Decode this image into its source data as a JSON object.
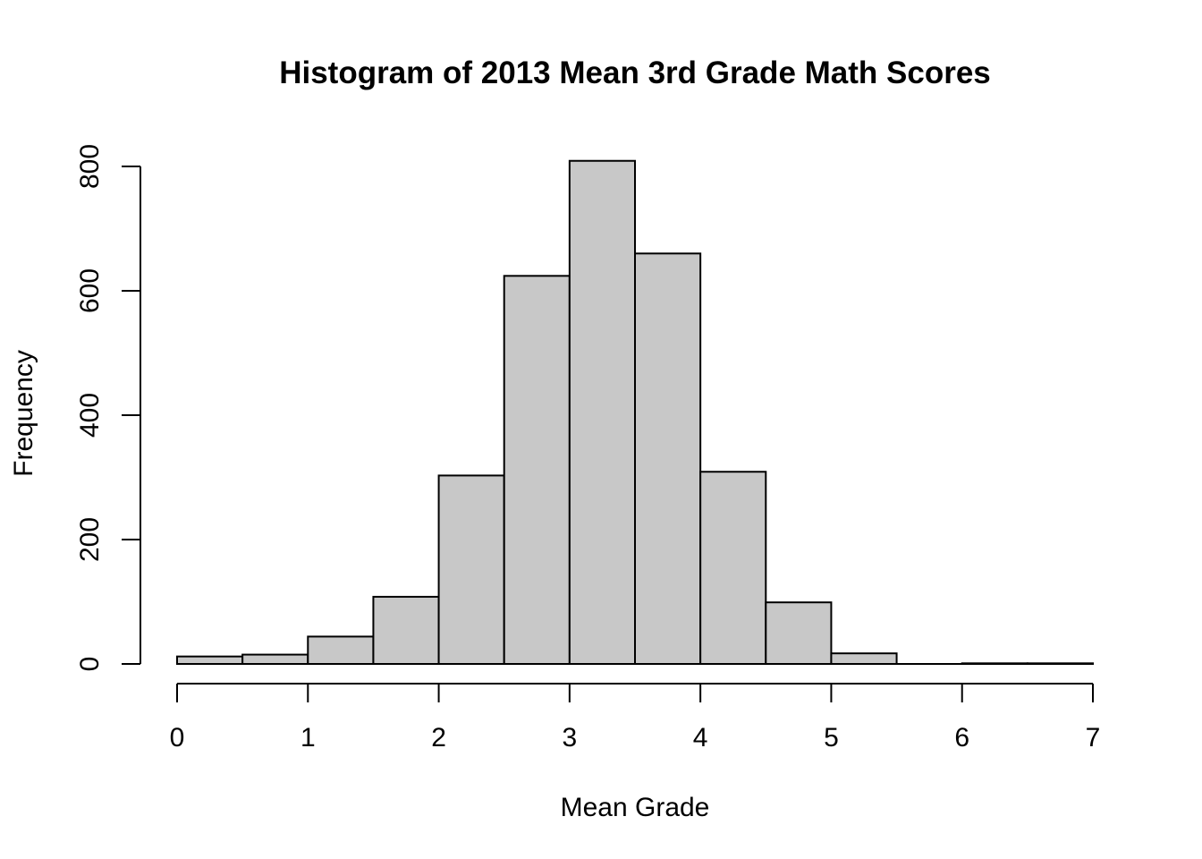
{
  "chart_data": {
    "type": "bar",
    "title": "Histogram of 2013 Mean 3rd Grade Math Scores",
    "xlabel": "Mean Grade",
    "ylabel": "Frequency",
    "bin_edges": [
      0,
      0.5,
      1,
      1.5,
      2,
      2.5,
      3,
      3.5,
      4,
      4.5,
      5,
      5.5,
      6,
      6.5,
      7
    ],
    "values": [
      12,
      15,
      44,
      108,
      303,
      624,
      809,
      660,
      309,
      99,
      17,
      0,
      1,
      1
    ],
    "xlim": [
      0,
      7
    ],
    "ylim": [
      0,
      800
    ],
    "x_ticks": [
      0,
      1,
      2,
      3,
      4,
      5,
      6,
      7
    ],
    "y_ticks": [
      0,
      200,
      400,
      600,
      800
    ],
    "x_tick_labels": [
      "0",
      "1",
      "2",
      "3",
      "4",
      "5",
      "6",
      "7"
    ],
    "y_tick_labels": [
      "0",
      "200",
      "400",
      "600",
      "800"
    ],
    "bar_color": "#C8C8C8",
    "edge_color": "#000000",
    "grid": false
  }
}
